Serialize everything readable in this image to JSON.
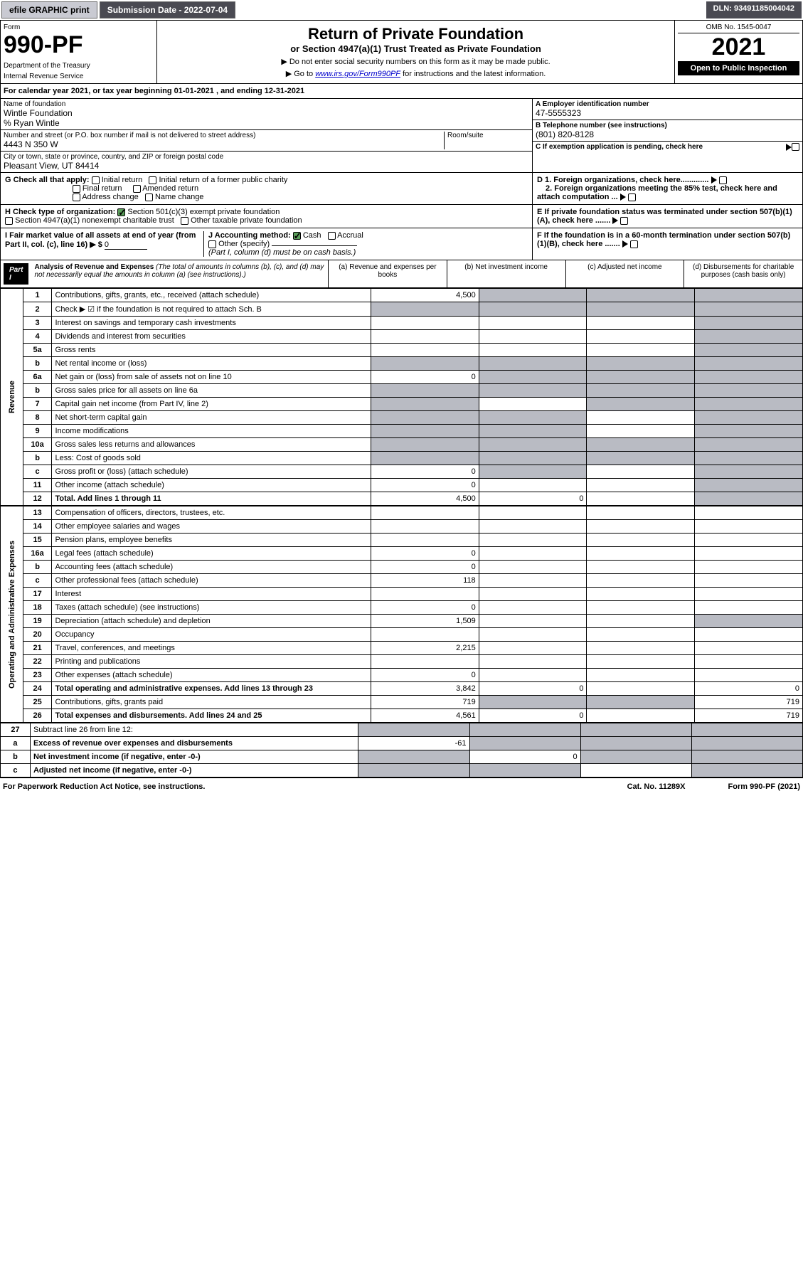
{
  "top": {
    "efile": "efile GRAPHIC print",
    "submission": "Submission Date - 2022-07-04",
    "dln": "DLN: 93491185004042"
  },
  "header": {
    "form_label": "Form",
    "form_num": "990-PF",
    "dept": "Department of the Treasury",
    "irs": "Internal Revenue Service",
    "title": "Return of Private Foundation",
    "subtitle": "or Section 4947(a)(1) Trust Treated as Private Foundation",
    "instr1": "▶ Do not enter social security numbers on this form as it may be made public.",
    "instr2": "▶ Go to www.irs.gov/Form990PF for instructions and the latest information.",
    "omb": "OMB No. 1545-0047",
    "year": "2021",
    "open": "Open to Public Inspection"
  },
  "calyear": "For calendar year 2021, or tax year beginning 01-01-2021                    , and ending 12-31-2021",
  "info": {
    "name_label": "Name of foundation",
    "name": "Wintle Foundation",
    "care": "% Ryan Wintle",
    "addr_label": "Number and street (or P.O. box number if mail is not delivered to street address)",
    "addr": "4443 N 350 W",
    "room_label": "Room/suite",
    "city_label": "City or town, state or province, country, and ZIP or foreign postal code",
    "city": "Pleasant View, UT  84414",
    "ein_label": "A Employer identification number",
    "ein": "47-5555323",
    "phone_label": "B Telephone number (see instructions)",
    "phone": "(801) 820-8128",
    "c_label": "C If exemption application is pending, check here"
  },
  "checks": {
    "g_label": "G Check all that apply:",
    "g_initial": "Initial return",
    "g_initial_former": "Initial return of a former public charity",
    "g_final": "Final return",
    "g_amended": "Amended return",
    "g_addr": "Address change",
    "g_name": "Name change",
    "h_label": "H Check type of organization:",
    "h_501c3": "Section 501(c)(3) exempt private foundation",
    "h_4947": "Section 4947(a)(1) nonexempt charitable trust",
    "h_other": "Other taxable private foundation",
    "i_label": "I Fair market value of all assets at end of year (from Part II, col. (c), line 16) ▶ $",
    "i_val": "0",
    "j_label": "J Accounting method:",
    "j_cash": "Cash",
    "j_accrual": "Accrual",
    "j_other": "Other (specify)",
    "j_note": "(Part I, column (d) must be on cash basis.)",
    "d1": "D 1. Foreign organizations, check here.............",
    "d2": "2. Foreign organizations meeting the 85% test, check here and attach computation ...",
    "e_label": "E  If private foundation status was terminated under section 507(b)(1)(A), check here .......",
    "f_label": "F  If the foundation is in a 60-month termination under section 507(b)(1)(B), check here ......."
  },
  "part1": {
    "label": "Part I",
    "title": "Analysis of Revenue and Expenses",
    "note": "(The total of amounts in columns (b), (c), and (d) may not necessarily equal the amounts in column (a) (see instructions).)",
    "col_a": "(a) Revenue and expenses per books",
    "col_b": "(b) Net investment income",
    "col_c": "(c) Adjusted net income",
    "col_d": "(d) Disbursements for charitable purposes (cash basis only)"
  },
  "sections": {
    "revenue": "Revenue",
    "expenses": "Operating and Administrative Expenses"
  },
  "rows": [
    {
      "n": "1",
      "lbl": "Contributions, gifts, grants, etc., received (attach schedule)",
      "a": "4,500",
      "b": "",
      "c": "",
      "d": "",
      "sb": true,
      "sc": true,
      "sd": true
    },
    {
      "n": "2",
      "lbl": "Check ▶ ☑ if the foundation is not required to attach Sch. B",
      "a": "",
      "b": "",
      "c": "",
      "d": "",
      "sa": true,
      "sb": true,
      "sc": true,
      "sd": true
    },
    {
      "n": "3",
      "lbl": "Interest on savings and temporary cash investments",
      "a": "",
      "b": "",
      "c": "",
      "d": "",
      "sd": true
    },
    {
      "n": "4",
      "lbl": "Dividends and interest from securities",
      "a": "",
      "b": "",
      "c": "",
      "d": "",
      "sd": true
    },
    {
      "n": "5a",
      "lbl": "Gross rents",
      "a": "",
      "b": "",
      "c": "",
      "d": "",
      "sd": true
    },
    {
      "n": "b",
      "lbl": "Net rental income or (loss)",
      "a": "",
      "b": "",
      "c": "",
      "d": "",
      "sa": true,
      "sb": true,
      "sc": true,
      "sd": true
    },
    {
      "n": "6a",
      "lbl": "Net gain or (loss) from sale of assets not on line 10",
      "a": "0",
      "b": "",
      "c": "",
      "d": "",
      "sb": true,
      "sc": true,
      "sd": true
    },
    {
      "n": "b",
      "lbl": "Gross sales price for all assets on line 6a",
      "a": "",
      "b": "",
      "c": "",
      "d": "",
      "sa": true,
      "sb": true,
      "sc": true,
      "sd": true
    },
    {
      "n": "7",
      "lbl": "Capital gain net income (from Part IV, line 2)",
      "a": "",
      "b": "",
      "c": "",
      "d": "",
      "sa": true,
      "sc": true,
      "sd": true
    },
    {
      "n": "8",
      "lbl": "Net short-term capital gain",
      "a": "",
      "b": "",
      "c": "",
      "d": "",
      "sa": true,
      "sb": true,
      "sd": true
    },
    {
      "n": "9",
      "lbl": "Income modifications",
      "a": "",
      "b": "",
      "c": "",
      "d": "",
      "sa": true,
      "sb": true,
      "sd": true
    },
    {
      "n": "10a",
      "lbl": "Gross sales less returns and allowances",
      "a": "",
      "b": "",
      "c": "",
      "d": "",
      "sa": true,
      "sb": true,
      "sc": true,
      "sd": true
    },
    {
      "n": "b",
      "lbl": "Less: Cost of goods sold",
      "a": "",
      "b": "",
      "c": "",
      "d": "",
      "sa": true,
      "sb": true,
      "sc": true,
      "sd": true
    },
    {
      "n": "c",
      "lbl": "Gross profit or (loss) (attach schedule)",
      "a": "0",
      "b": "",
      "c": "",
      "d": "",
      "sb": true,
      "sd": true
    },
    {
      "n": "11",
      "lbl": "Other income (attach schedule)",
      "a": "0",
      "b": "",
      "c": "",
      "d": "",
      "sd": true
    },
    {
      "n": "12",
      "lbl": "Total. Add lines 1 through 11",
      "a": "4,500",
      "b": "0",
      "c": "",
      "d": "",
      "sd": true,
      "bold": true
    }
  ],
  "exp_rows": [
    {
      "n": "13",
      "lbl": "Compensation of officers, directors, trustees, etc.",
      "a": "",
      "b": "",
      "c": "",
      "d": ""
    },
    {
      "n": "14",
      "lbl": "Other employee salaries and wages",
      "a": "",
      "b": "",
      "c": "",
      "d": ""
    },
    {
      "n": "15",
      "lbl": "Pension plans, employee benefits",
      "a": "",
      "b": "",
      "c": "",
      "d": ""
    },
    {
      "n": "16a",
      "lbl": "Legal fees (attach schedule)",
      "a": "0",
      "b": "",
      "c": "",
      "d": ""
    },
    {
      "n": "b",
      "lbl": "Accounting fees (attach schedule)",
      "a": "0",
      "b": "",
      "c": "",
      "d": ""
    },
    {
      "n": "c",
      "lbl": "Other professional fees (attach schedule)",
      "a": "118",
      "b": "",
      "c": "",
      "d": ""
    },
    {
      "n": "17",
      "lbl": "Interest",
      "a": "",
      "b": "",
      "c": "",
      "d": ""
    },
    {
      "n": "18",
      "lbl": "Taxes (attach schedule) (see instructions)",
      "a": "0",
      "b": "",
      "c": "",
      "d": ""
    },
    {
      "n": "19",
      "lbl": "Depreciation (attach schedule) and depletion",
      "a": "1,509",
      "b": "",
      "c": "",
      "d": "",
      "sd": true
    },
    {
      "n": "20",
      "lbl": "Occupancy",
      "a": "",
      "b": "",
      "c": "",
      "d": ""
    },
    {
      "n": "21",
      "lbl": "Travel, conferences, and meetings",
      "a": "2,215",
      "b": "",
      "c": "",
      "d": ""
    },
    {
      "n": "22",
      "lbl": "Printing and publications",
      "a": "",
      "b": "",
      "c": "",
      "d": ""
    },
    {
      "n": "23",
      "lbl": "Other expenses (attach schedule)",
      "a": "0",
      "b": "",
      "c": "",
      "d": ""
    },
    {
      "n": "24",
      "lbl": "Total operating and administrative expenses. Add lines 13 through 23",
      "a": "3,842",
      "b": "0",
      "c": "",
      "d": "0",
      "bold": true
    },
    {
      "n": "25",
      "lbl": "Contributions, gifts, grants paid",
      "a": "719",
      "b": "",
      "c": "",
      "d": "719",
      "sb": true,
      "sc": true
    },
    {
      "n": "26",
      "lbl": "Total expenses and disbursements. Add lines 24 and 25",
      "a": "4,561",
      "b": "0",
      "c": "",
      "d": "719",
      "bold": true
    }
  ],
  "final_rows": [
    {
      "n": "27",
      "lbl": "Subtract line 26 from line 12:",
      "a": "",
      "b": "",
      "c": "",
      "d": "",
      "sa": true,
      "sb": true,
      "sc": true,
      "sd": true
    },
    {
      "n": "a",
      "lbl": "Excess of revenue over expenses and disbursements",
      "a": "-61",
      "b": "",
      "c": "",
      "d": "",
      "sb": true,
      "sc": true,
      "sd": true,
      "bold": true
    },
    {
      "n": "b",
      "lbl": "Net investment income (if negative, enter -0-)",
      "a": "",
      "b": "0",
      "c": "",
      "d": "",
      "sa": true,
      "sc": true,
      "sd": true,
      "bold": true
    },
    {
      "n": "c",
      "lbl": "Adjusted net income (if negative, enter -0-)",
      "a": "",
      "b": "",
      "c": "",
      "d": "",
      "sa": true,
      "sb": true,
      "sd": true,
      "bold": true
    }
  ],
  "footer": {
    "left": "For Paperwork Reduction Act Notice, see instructions.",
    "center": "Cat. No. 11289X",
    "right": "Form 990-PF (2021)"
  }
}
